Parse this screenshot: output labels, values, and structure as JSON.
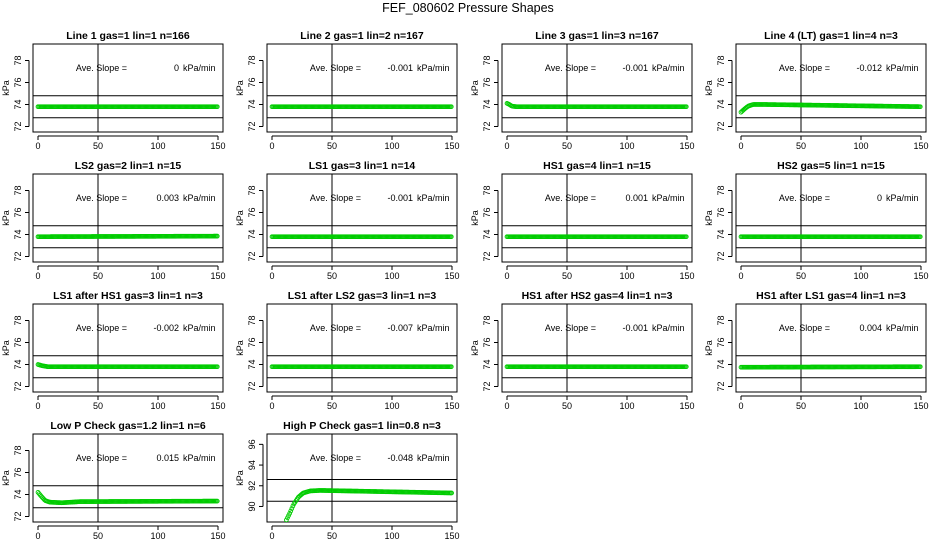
{
  "page_title": "FEF_080602  Pressure Shapes",
  "chart_data": [
    {
      "type": "scatter",
      "title": "Line 1 gas=1 lin=1 n=166",
      "ylabel": "kPa",
      "xlim": [
        0,
        150
      ],
      "ylim": [
        71.5,
        79.5
      ],
      "yticks": [
        72,
        74,
        76,
        78
      ],
      "xticks": [
        0,
        50,
        100,
        150
      ],
      "hlines": [
        72.8,
        74.8
      ],
      "vline": 50,
      "slope_label": "Ave. Slope =",
      "slope_value": "0",
      "slope_unit": "kPa/min",
      "series": [
        {
          "values": [
            [
              0,
              73.8
            ],
            [
              150,
              73.8
            ]
          ]
        }
      ],
      "point_color": "#00cc00"
    },
    {
      "type": "scatter",
      "title": "Line 2 gas=1 lin=2 n=167",
      "ylabel": "kPa",
      "xlim": [
        0,
        150
      ],
      "ylim": [
        71.5,
        79.5
      ],
      "yticks": [
        72,
        74,
        76,
        78
      ],
      "xticks": [
        0,
        50,
        100,
        150
      ],
      "hlines": [
        72.8,
        74.8
      ],
      "vline": 50,
      "slope_label": "Ave. Slope =",
      "slope_value": "-0.001",
      "slope_unit": "kPa/min",
      "series": [
        {
          "values": [
            [
              0,
              73.8
            ],
            [
              150,
              73.8
            ]
          ]
        }
      ],
      "point_color": "#00cc00"
    },
    {
      "type": "scatter",
      "title": "Line 3 gas=1 lin=3 n=167",
      "ylabel": "kPa",
      "xlim": [
        0,
        150
      ],
      "ylim": [
        71.5,
        79.5
      ],
      "yticks": [
        72,
        74,
        76,
        78
      ],
      "xticks": [
        0,
        50,
        100,
        150
      ],
      "hlines": [
        72.8,
        74.8
      ],
      "vline": 50,
      "slope_label": "Ave. Slope =",
      "slope_value": "-0.001",
      "slope_unit": "kPa/min",
      "series": [
        {
          "values": [
            [
              0,
              74.1
            ],
            [
              2,
              74.0
            ],
            [
              4,
              73.85
            ],
            [
              8,
              73.8
            ],
            [
              150,
              73.8
            ]
          ]
        }
      ],
      "point_color": "#00cc00"
    },
    {
      "type": "scatter",
      "title": "Line 4 (LT) gas=1 lin=4 n=3",
      "ylabel": "kPa",
      "xlim": [
        0,
        150
      ],
      "ylim": [
        71.5,
        79.5
      ],
      "yticks": [
        72,
        74,
        76,
        78
      ],
      "xticks": [
        0,
        50,
        100,
        150
      ],
      "hlines": [
        72.8,
        74.8
      ],
      "vline": 50,
      "slope_label": "Ave. Slope =",
      "slope_value": "-0.012",
      "slope_unit": "kPa/min",
      "series": [
        {
          "values": [
            [
              0,
              73.3
            ],
            [
              3,
              73.6
            ],
            [
              6,
              73.85
            ],
            [
              10,
              74.0
            ],
            [
              20,
              74.0
            ],
            [
              150,
              73.8
            ]
          ]
        }
      ],
      "point_color": "#00cc00"
    },
    {
      "type": "scatter",
      "title": "LS2 gas=2 lin=1 n=15",
      "ylabel": "kPa",
      "xlim": [
        0,
        150
      ],
      "ylim": [
        71.5,
        79.5
      ],
      "yticks": [
        72,
        74,
        76,
        78
      ],
      "xticks": [
        0,
        50,
        100,
        150
      ],
      "hlines": [
        72.8,
        74.8
      ],
      "vline": 50,
      "slope_label": "Ave. Slope =",
      "slope_value": "0.003",
      "slope_unit": "kPa/min",
      "series": [
        {
          "values": [
            [
              0,
              73.8
            ],
            [
              150,
              73.85
            ]
          ]
        }
      ],
      "point_color": "#00cc00"
    },
    {
      "type": "scatter",
      "title": "LS1 gas=3 lin=1 n=14",
      "ylabel": "kPa",
      "xlim": [
        0,
        150
      ],
      "ylim": [
        71.5,
        79.5
      ],
      "yticks": [
        72,
        74,
        76,
        78
      ],
      "xticks": [
        0,
        50,
        100,
        150
      ],
      "hlines": [
        72.8,
        74.8
      ],
      "vline": 50,
      "slope_label": "Ave. Slope =",
      "slope_value": "-0.001",
      "slope_unit": "kPa/min",
      "series": [
        {
          "values": [
            [
              0,
              73.8
            ],
            [
              150,
              73.8
            ]
          ]
        }
      ],
      "point_color": "#00cc00"
    },
    {
      "type": "scatter",
      "title": "HS1 gas=4 lin=1 n=15",
      "ylabel": "kPa",
      "xlim": [
        0,
        150
      ],
      "ylim": [
        71.5,
        79.5
      ],
      "yticks": [
        72,
        74,
        76,
        78
      ],
      "xticks": [
        0,
        50,
        100,
        150
      ],
      "hlines": [
        72.8,
        74.8
      ],
      "vline": 50,
      "slope_label": "Ave. Slope =",
      "slope_value": "0.001",
      "slope_unit": "kPa/min",
      "series": [
        {
          "values": [
            [
              0,
              73.8
            ],
            [
              150,
              73.8
            ]
          ]
        }
      ],
      "point_color": "#00cc00"
    },
    {
      "type": "scatter",
      "title": "HS2 gas=5 lin=1 n=15",
      "ylabel": "kPa",
      "xlim": [
        0,
        150
      ],
      "ylim": [
        71.5,
        79.5
      ],
      "yticks": [
        72,
        74,
        76,
        78
      ],
      "xticks": [
        0,
        50,
        100,
        150
      ],
      "hlines": [
        72.8,
        74.8
      ],
      "vline": 50,
      "slope_label": "Ave. Slope =",
      "slope_value": "0",
      "slope_unit": "kPa/min",
      "series": [
        {
          "values": [
            [
              0,
              73.8
            ],
            [
              150,
              73.8
            ]
          ]
        }
      ],
      "point_color": "#00cc00"
    },
    {
      "type": "scatter",
      "title": "LS1 after HS1 gas=3 lin=1 n=3",
      "ylabel": "kPa",
      "xlim": [
        0,
        150
      ],
      "ylim": [
        71.5,
        79.5
      ],
      "yticks": [
        72,
        74,
        76,
        78
      ],
      "xticks": [
        0,
        50,
        100,
        150
      ],
      "hlines": [
        72.8,
        74.8
      ],
      "vline": 50,
      "slope_label": "Ave. Slope =",
      "slope_value": "-0.002",
      "slope_unit": "kPa/min",
      "series": [
        {
          "values": [
            [
              0,
              74.0
            ],
            [
              3,
              73.9
            ],
            [
              8,
              73.8
            ],
            [
              150,
              73.8
            ]
          ]
        }
      ],
      "point_color": "#00cc00"
    },
    {
      "type": "scatter",
      "title": "LS1 after LS2 gas=3 lin=1 n=3",
      "ylabel": "kPa",
      "xlim": [
        0,
        150
      ],
      "ylim": [
        71.5,
        79.5
      ],
      "yticks": [
        72,
        74,
        76,
        78
      ],
      "xticks": [
        0,
        50,
        100,
        150
      ],
      "hlines": [
        72.8,
        74.8
      ],
      "vline": 50,
      "slope_label": "Ave. Slope =",
      "slope_value": "-0.007",
      "slope_unit": "kPa/min",
      "series": [
        {
          "values": [
            [
              0,
              73.8
            ],
            [
              150,
              73.8
            ]
          ]
        }
      ],
      "point_color": "#00cc00"
    },
    {
      "type": "scatter",
      "title": "HS1 after HS2 gas=4 lin=1 n=3",
      "ylabel": "kPa",
      "xlim": [
        0,
        150
      ],
      "ylim": [
        71.5,
        79.5
      ],
      "yticks": [
        72,
        74,
        76,
        78
      ],
      "xticks": [
        0,
        50,
        100,
        150
      ],
      "hlines": [
        72.8,
        74.8
      ],
      "vline": 50,
      "slope_label": "Ave. Slope =",
      "slope_value": "-0.001",
      "slope_unit": "kPa/min",
      "series": [
        {
          "values": [
            [
              0,
              73.8
            ],
            [
              150,
              73.8
            ]
          ]
        }
      ],
      "point_color": "#00cc00"
    },
    {
      "type": "scatter",
      "title": "HS1 after LS1 gas=4 lin=1 n=3",
      "ylabel": "kPa",
      "xlim": [
        0,
        150
      ],
      "ylim": [
        71.5,
        79.5
      ],
      "yticks": [
        72,
        74,
        76,
        78
      ],
      "xticks": [
        0,
        50,
        100,
        150
      ],
      "hlines": [
        72.8,
        74.8
      ],
      "vline": 50,
      "slope_label": "Ave. Slope =",
      "slope_value": "0.004",
      "slope_unit": "kPa/min",
      "series": [
        {
          "values": [
            [
              0,
              73.75
            ],
            [
              150,
              73.8
            ]
          ]
        }
      ],
      "point_color": "#00cc00"
    },
    {
      "type": "scatter",
      "title": "Low P Check gas=1.2 lin=1 n=6",
      "ylabel": "kPa",
      "xlim": [
        0,
        150
      ],
      "ylim": [
        71.5,
        79.5
      ],
      "yticks": [
        72,
        74,
        76,
        78
      ],
      "xticks": [
        0,
        50,
        100,
        150
      ],
      "hlines": [
        72.8,
        74.8
      ],
      "vline": 50,
      "slope_label": "Ave. Slope =",
      "slope_value": "0.015",
      "slope_unit": "kPa/min",
      "series": [
        {
          "values": [
            [
              0,
              74.2
            ],
            [
              3,
              73.8
            ],
            [
              6,
              73.45
            ],
            [
              10,
              73.3
            ],
            [
              20,
              73.25
            ],
            [
              35,
              73.35
            ],
            [
              150,
              73.4
            ]
          ]
        }
      ],
      "point_color": "#00cc00"
    },
    {
      "type": "scatter",
      "title": "High P Check gas=1 lin=0.8 n=3",
      "ylabel": "kPa",
      "xlim": [
        0,
        150
      ],
      "ylim": [
        88.5,
        97.0
      ],
      "yticks": [
        90,
        92,
        94,
        96
      ],
      "xticks": [
        0,
        50,
        100,
        150
      ],
      "hlines": [
        90.5,
        92.6
      ],
      "vline": 50,
      "slope_label": "Ave. Slope =",
      "slope_value": "-0.048",
      "slope_unit": "kPa/min",
      "series": [
        {
          "values": [
            [
              12,
              88.7
            ],
            [
              15,
              89.4
            ],
            [
              18,
              90.2
            ],
            [
              22,
              90.9
            ],
            [
              26,
              91.3
            ],
            [
              32,
              91.5
            ],
            [
              40,
              91.55
            ],
            [
              150,
              91.3
            ]
          ]
        }
      ],
      "point_color": "#00cc00"
    }
  ]
}
